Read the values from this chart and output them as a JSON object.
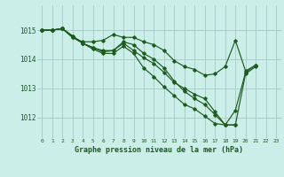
{
  "bg_color": "#cceee8",
  "line_color": "#1a5c1a",
  "grid_color": "#aacccc",
  "xlabel": "Graphe pression niveau de la mer (hPa)",
  "xlabel_color": "#1a5c1a",
  "ylabel_ticks": [
    1012,
    1013,
    1014,
    1015
  ],
  "xlim": [
    -0.5,
    23.5
  ],
  "ylim": [
    1011.3,
    1015.85
  ],
  "line1_x": [
    0,
    1,
    2,
    3,
    4,
    5,
    6,
    7,
    8,
    9,
    10,
    11,
    12,
    13,
    14,
    15,
    16,
    17,
    18,
    19,
    20,
    21
  ],
  "line1_y": [
    1015.0,
    1015.0,
    1015.05,
    1014.75,
    1014.6,
    1014.6,
    1014.65,
    1014.85,
    1014.75,
    1014.75,
    1014.6,
    1014.5,
    1014.3,
    1013.95,
    1013.75,
    1013.65,
    1013.45,
    1013.5,
    1013.75,
    1014.65,
    1013.6,
    1013.8
  ],
  "line2_x": [
    0,
    1,
    2,
    3,
    4,
    5,
    6,
    7,
    8,
    9,
    10,
    11,
    12,
    13,
    14,
    15,
    16,
    17,
    18,
    19
  ],
  "line2_y": [
    1015.0,
    1015.0,
    1015.05,
    1014.75,
    1014.55,
    1014.4,
    1014.3,
    1014.3,
    1014.55,
    1014.3,
    1014.05,
    1013.85,
    1013.55,
    1013.2,
    1013.0,
    1012.8,
    1012.65,
    1012.2,
    1011.75,
    1011.75
  ],
  "line3_x": [
    0,
    1,
    2,
    3,
    4,
    5,
    6,
    7,
    8,
    9,
    10,
    11,
    12,
    13,
    14,
    15,
    16,
    17,
    18,
    19,
    20,
    21
  ],
  "line3_y": [
    1015.0,
    1015.0,
    1015.05,
    1014.8,
    1014.55,
    1014.4,
    1014.25,
    1014.3,
    1014.6,
    1014.5,
    1014.2,
    1014.0,
    1013.7,
    1013.25,
    1012.9,
    1012.65,
    1012.45,
    1012.1,
    1011.75,
    1011.75,
    1013.5,
    1013.75
  ],
  "line4_x": [
    0,
    1,
    2,
    3,
    4,
    5,
    6,
    7,
    8,
    9,
    10,
    11,
    12,
    13,
    14,
    15,
    16,
    17,
    18,
    19,
    20,
    21
  ],
  "line4_y": [
    1015.0,
    1015.0,
    1015.05,
    1014.8,
    1014.55,
    1014.35,
    1014.2,
    1014.2,
    1014.45,
    1014.2,
    1013.7,
    1013.4,
    1013.05,
    1012.75,
    1012.45,
    1012.3,
    1012.05,
    1011.8,
    1011.75,
    1012.25,
    1013.55,
    1013.8
  ]
}
